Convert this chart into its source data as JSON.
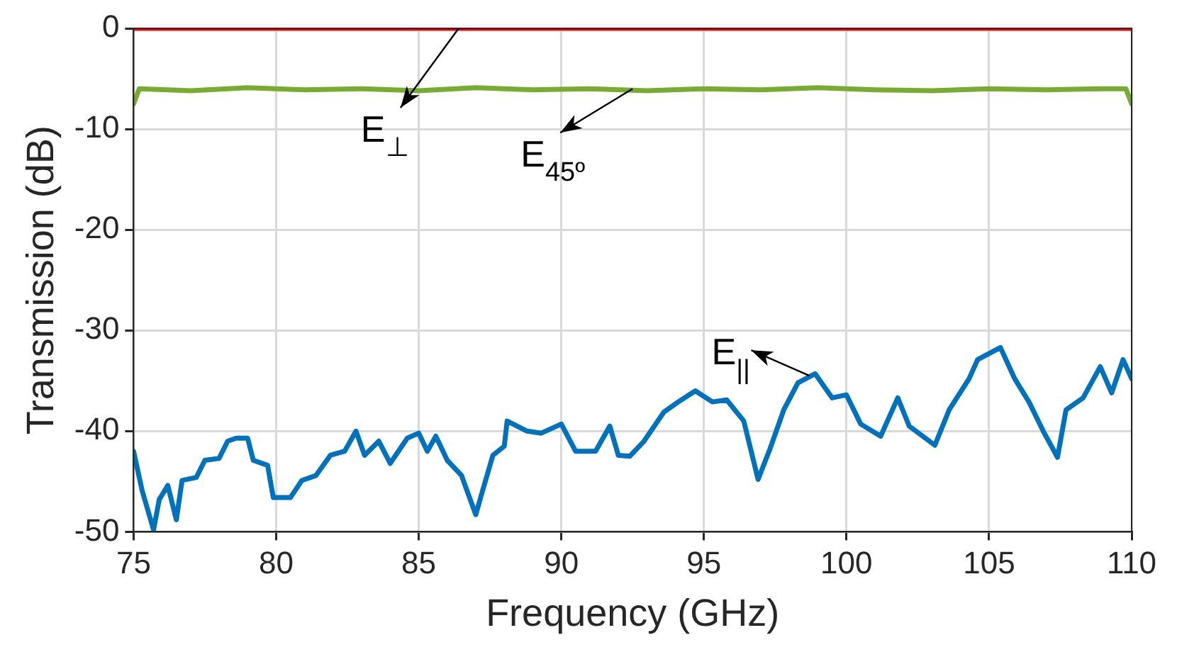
{
  "chart_data": {
    "type": "line",
    "xlabel": "Frequency (GHz)",
    "ylabel": "Transmission (dB)",
    "xlim": [
      75,
      110
    ],
    "xticks": [
      75,
      80,
      85,
      90,
      95,
      100,
      105,
      110
    ],
    "ylim": [
      -50,
      0
    ],
    "yticks": [
      -50,
      -40,
      -30,
      -20,
      -10,
      0
    ],
    "grid": true,
    "legend": false,
    "line_style": "solid",
    "marker": "none",
    "series": [
      {
        "color": "#ff0000",
        "x": [
          75,
          80,
          85,
          90,
          95,
          100,
          105,
          110
        ],
        "values": [
          0,
          0,
          0,
          0,
          0,
          0,
          0,
          0
        ]
      },
      {
        "color": "#77ac30",
        "x": [
          75,
          75.2,
          77,
          79,
          81,
          83,
          85,
          87,
          89,
          91,
          93,
          95,
          97,
          99,
          101,
          103,
          105,
          107,
          109,
          109.8,
          110
        ],
        "values": [
          -7.5,
          -6,
          -6.2,
          -5.9,
          -6.1,
          -6,
          -6.2,
          -5.9,
          -6.1,
          -6,
          -6.2,
          -6,
          -6.1,
          -5.9,
          -6.1,
          -6.2,
          -6,
          -6.1,
          -6,
          -6,
          -7.5
        ]
      },
      {
        "color": "#0072bd",
        "x": [
          75,
          75.3,
          75.7,
          75.9,
          76.2,
          76.5,
          76.7,
          77.2,
          77.5,
          78,
          78.3,
          78.6,
          79,
          79.2,
          79.7,
          79.9,
          80.5,
          80.9,
          81.4,
          81.9,
          82.4,
          82.8,
          83.1,
          83.6,
          84,
          84.6,
          85,
          85.3,
          85.6,
          86,
          86.5,
          87,
          87.2,
          87.6,
          88,
          88.1,
          88.8,
          89.3,
          90,
          90.5,
          91.2,
          91.7,
          92,
          92.4,
          92.9,
          93.6,
          94.1,
          94.7,
          95.3,
          95.8,
          96.4,
          96.9,
          97.3,
          97.8,
          98.3,
          98.9,
          99.5,
          100,
          100.5,
          101.2,
          101.8,
          102.2,
          103.1,
          103.6,
          104.3,
          104.6,
          105.4,
          105.9,
          106.4,
          106.9,
          107.4,
          107.7,
          108.3,
          108.9,
          109.3,
          109.7,
          110
        ],
        "values": [
          -42,
          -45.9,
          -49.8,
          -46.8,
          -45.4,
          -48.8,
          -44.9,
          -44.6,
          -42.9,
          -42.7,
          -41,
          -40.7,
          -40.7,
          -42.9,
          -43.4,
          -46.6,
          -46.6,
          -44.9,
          -44.4,
          -42.4,
          -42,
          -40,
          -42.4,
          -41,
          -43.2,
          -40.7,
          -40.2,
          -42,
          -40.5,
          -42.9,
          -44.4,
          -48.3,
          -46.3,
          -42.4,
          -41.5,
          -39,
          -40,
          -40.2,
          -39.3,
          -42,
          -42,
          -39.5,
          -42.4,
          -42.5,
          -41,
          -38.1,
          -37.1,
          -36,
          -37.1,
          -36.9,
          -39,
          -44.8,
          -41.9,
          -37.9,
          -35.2,
          -34.3,
          -36.7,
          -36.4,
          -39.3,
          -40.5,
          -36.7,
          -39.5,
          -41.4,
          -37.9,
          -34.8,
          -32.9,
          -31.7,
          -34.8,
          -37.1,
          -40,
          -42.6,
          -37.9,
          -36.7,
          -33.6,
          -36.2,
          -32.9,
          -34.8
        ]
      }
    ],
    "annotations": [
      {
        "text": "E$_{⊥}$",
        "x": 86.4,
        "y": 0
      },
      {
        "text": "E$_{45º}$",
        "x": 92.5,
        "y": -6
      },
      {
        "text": "E$_{||}$",
        "x": 98.7,
        "y": -34.5
      }
    ]
  }
}
